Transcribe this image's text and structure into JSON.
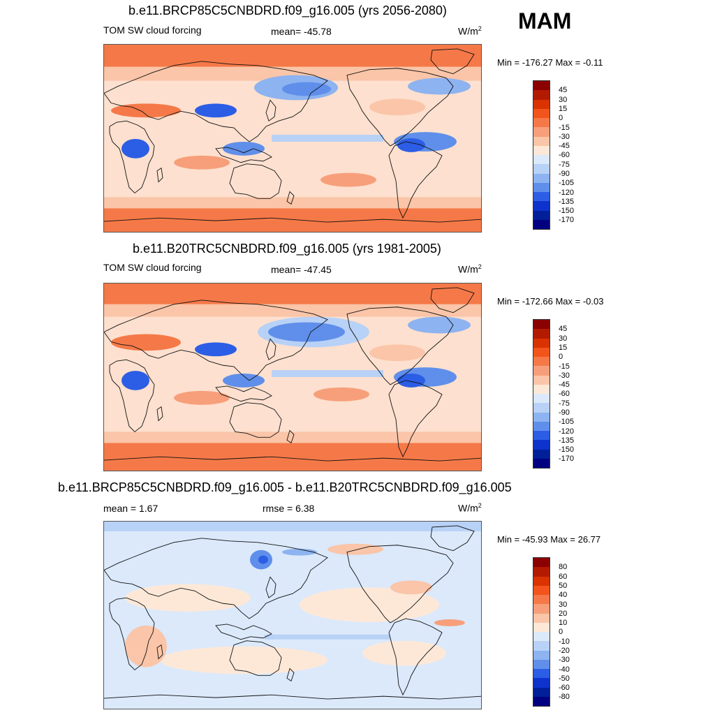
{
  "figure": {
    "season": "MAM",
    "units": "W/m",
    "units_sup": "2"
  },
  "panels": [
    {
      "id": "future",
      "title": "b.e11.BRCP85C5CNBDRD.f09_g16.005 (yrs 2056-2080)",
      "variable": "TOM SW cloud forcing",
      "mean_text": "mean= -45.78",
      "minmax": "Min = -176.27 Max =  -0.11",
      "colorbar": {
        "labels": [
          "45",
          "30",
          "15",
          "0",
          "-15",
          "-30",
          "-45",
          "-60",
          "-75",
          "-90",
          "-105",
          "-120",
          "-135",
          "-150",
          "-170"
        ],
        "colors": [
          "#8b0000",
          "#b31b00",
          "#d83300",
          "#f2541c",
          "#f57948",
          "#f79f7a",
          "#fac5a8",
          "#fde8d8",
          "#dbe9fb",
          "#b8d1f6",
          "#8db3f0",
          "#5f8fea",
          "#2c5de5",
          "#0d33cc",
          "#001f99",
          "#000080"
        ]
      }
    },
    {
      "id": "historical",
      "title": "b.e11.B20TRC5CNBDRD.f09_g16.005 (yrs 1981-2005)",
      "variable": "TOM SW cloud forcing",
      "mean_text": "mean= -47.45",
      "minmax": "Min = -172.66 Max =  -0.03",
      "colorbar": {
        "labels": [
          "45",
          "30",
          "15",
          "0",
          "-15",
          "-30",
          "-45",
          "-60",
          "-75",
          "-90",
          "-105",
          "-120",
          "-135",
          "-150",
          "-170"
        ],
        "colors": [
          "#8b0000",
          "#b31b00",
          "#d83300",
          "#f2541c",
          "#f57948",
          "#f79f7a",
          "#fac5a8",
          "#fde8d8",
          "#dbe9fb",
          "#b8d1f6",
          "#8db3f0",
          "#5f8fea",
          "#2c5de5",
          "#0d33cc",
          "#001f99",
          "#000080"
        ]
      }
    },
    {
      "id": "difference",
      "title": "b.e11.BRCP85C5CNBDRD.f09_g16.005 - b.e11.B20TRC5CNBDRD.f09_g16.005",
      "mean_text": "mean =   1.67",
      "rmse_text": "rmse =   6.38",
      "minmax": "Min = -45.93 Max =  26.77",
      "colorbar": {
        "labels": [
          "80",
          "60",
          "50",
          "40",
          "30",
          "20",
          "10",
          "0",
          "-10",
          "-20",
          "-30",
          "-40",
          "-50",
          "-60",
          "-80"
        ],
        "colors": [
          "#8b0000",
          "#b31b00",
          "#d83300",
          "#f2541c",
          "#f57948",
          "#f79f7a",
          "#fac5a8",
          "#fde8d8",
          "#dbe9fb",
          "#b8d1f6",
          "#8db3f0",
          "#5f8fea",
          "#2c5de5",
          "#0d33cc",
          "#001f99",
          "#000080"
        ]
      }
    }
  ]
}
